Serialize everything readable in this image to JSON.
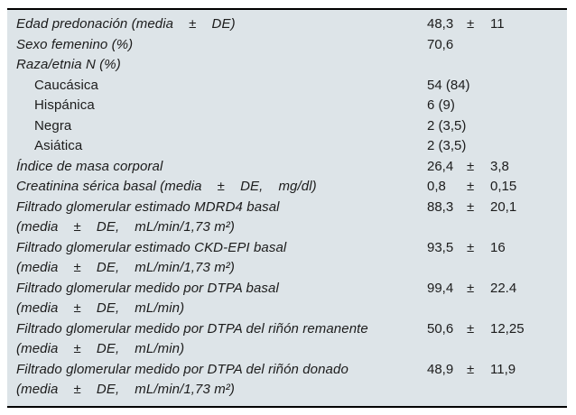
{
  "colors": {
    "table_background": "#dde4e8",
    "rule_color": "#000000",
    "text_color": "#1c1c1c",
    "page_background": "#ffffff"
  },
  "table": {
    "rows": [
      {
        "label": "Edad predonación (media    ±    DE)",
        "v1": "48,3",
        "pm": "±",
        "sd": "11"
      },
      {
        "label": "Sexo femenino (%)",
        "v1": "70,6"
      },
      {
        "label": "Raza/etnia N (%)"
      },
      {
        "label": "Caucásica",
        "v1": "54 (84)"
      },
      {
        "label": "Hispánica",
        "v1": "6 (9)"
      },
      {
        "label": "Negra",
        "v1": "2 (3,5)"
      },
      {
        "label": "Asiática",
        "v1": "2 (3,5)"
      },
      {
        "label": "Índice de masa corporal",
        "v1": "26,4",
        "pm": "±",
        "sd": "3,8"
      },
      {
        "label": "Creatinina sérica basal (media    ±    DE,    mg/dl)",
        "v1": "0,8",
        "pm": "±",
        "sd": "0,15"
      },
      {
        "label": "Filtrado glomerular estimado MDRD4 basal\n(media    ±    DE,    mL/min/1,73 m²)",
        "v1": "88,3",
        "pm": "±",
        "sd": "20,1"
      },
      {
        "label": "Filtrado glomerular estimado CKD-EPI basal\n(media    ±    DE,    mL/min/1,73 m²)",
        "v1": "93,5",
        "pm": "±",
        "sd": "16"
      },
      {
        "label": "Filtrado glomerular medido por DTPA basal\n(media    ±    DE,    mL/min)",
        "v1": "99,4",
        "pm": "±",
        "sd": "22.4"
      },
      {
        "label": "Filtrado glomerular medido por DTPA del riñón remanente\n(media    ±    DE,    mL/min)",
        "v1": "50,6",
        "pm": "±",
        "sd": "12,25"
      },
      {
        "label": "Filtrado glomerular medido por DTPA del riñón donado\n(media    ±    DE,    mL/min/1,73 m²)",
        "v1": "48,9",
        "pm": "±",
        "sd": "11,9"
      }
    ]
  }
}
